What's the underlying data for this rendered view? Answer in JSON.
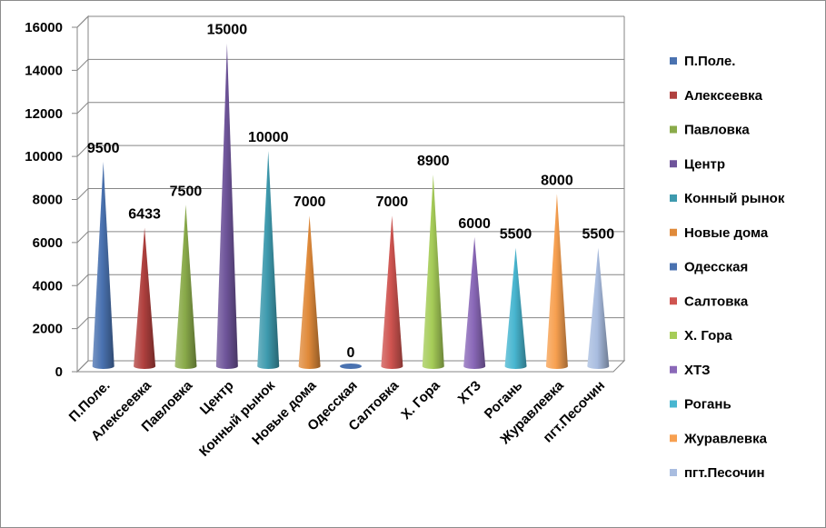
{
  "chart_data": {
    "type": "bar",
    "style": "3d-cone",
    "title": "",
    "xlabel": "",
    "ylabel": "",
    "ylim": [
      0,
      16000
    ],
    "yticks": [
      0,
      2000,
      4000,
      6000,
      8000,
      10000,
      12000,
      14000,
      16000
    ],
    "grid": true,
    "legend_position": "right",
    "series": [
      {
        "name": "П.Поле.",
        "value": 9500,
        "color": "#4a72b0"
      },
      {
        "name": "Алексеевка",
        "value": 6433,
        "color": "#b0403e"
      },
      {
        "name": "Павловка",
        "value": 7500,
        "color": "#8aab4a"
      },
      {
        "name": "Центр",
        "value": 15000,
        "color": "#6e549a"
      },
      {
        "name": "Конный рынок",
        "value": 10000,
        "color": "#3e9aae"
      },
      {
        "name": "Новые дома",
        "value": 7000,
        "color": "#e08a3a"
      },
      {
        "name": "Одесская",
        "value": 0,
        "color": "#4a72b0"
      },
      {
        "name": "Салтовка",
        "value": 7000,
        "color": "#cf5450"
      },
      {
        "name": "Х. Гора",
        "value": 8900,
        "color": "#a6cc58"
      },
      {
        "name": "ХТЗ",
        "value": 6000,
        "color": "#8a68b8"
      },
      {
        "name": "Рогань",
        "value": 5500,
        "color": "#48b6d0"
      },
      {
        "name": "Журавлевка",
        "value": 8000,
        "color": "#f7a050"
      },
      {
        "name": "пгт.Песочин",
        "value": 5500,
        "color": "#a9bde0"
      }
    ]
  }
}
